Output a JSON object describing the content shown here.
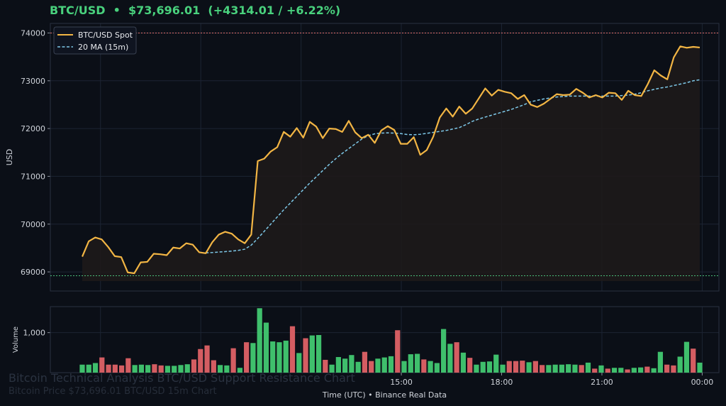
{
  "header": {
    "pair": "BTC/USD",
    "separator": "•",
    "price": "$73,696.01",
    "change": "(+4314.01 / +6.22%)"
  },
  "watermark": {
    "title": "Bitcoin Technical Analysis BTC/USD Support Resistance Chart",
    "subtitle": "Bitcoin Price $73,696.01 BTC/USD 15m Chart"
  },
  "colors": {
    "background": "#0b0f17",
    "grid": "#1c2433",
    "price_line": "#f2b544",
    "ma_line": "#7ec8e8",
    "resistance": "#e06c6c",
    "support": "#4bbf7a",
    "volume_up": "#3fbf6c",
    "volume_down": "#d45d62",
    "text": "#cfd3da"
  },
  "chart_data": [
    {
      "type": "line",
      "ylabel": "USD",
      "ylim": [
        68600,
        74200
      ],
      "xlim": [
        0,
        100
      ],
      "yticks": [
        69000,
        70000,
        71000,
        72000,
        73000,
        74000
      ],
      "resistance": 74000,
      "support": 68920,
      "legend": "top-left",
      "grid": true,
      "series": [
        {
          "name": "BTC/USD Spot",
          "values": [
            69320,
            69640,
            69720,
            69680,
            69520,
            69330,
            69310,
            68990,
            68970,
            69200,
            69210,
            69380,
            69370,
            69350,
            69510,
            69490,
            69600,
            69570,
            69410,
            69390,
            69620,
            69780,
            69840,
            69800,
            69680,
            69600,
            69780,
            71320,
            71370,
            71520,
            71610,
            71930,
            71830,
            72010,
            71810,
            72140,
            72040,
            71800,
            72000,
            71990,
            71930,
            72160,
            71920,
            71800,
            71870,
            71700,
            71960,
            72050,
            71970,
            71680,
            71680,
            71820,
            71450,
            71550,
            71830,
            72230,
            72420,
            72250,
            72460,
            72310,
            72420,
            72630,
            72840,
            72690,
            72810,
            72770,
            72740,
            72620,
            72700,
            72500,
            72450,
            72520,
            72620,
            72720,
            72700,
            72710,
            72830,
            72750,
            72650,
            72700,
            72650,
            72750,
            72740,
            72600,
            72790,
            72700,
            72680,
            72930,
            73220,
            73110,
            73030,
            73490,
            73720,
            73690,
            73710,
            73696.01
          ]
        },
        {
          "name": "20 MA (15m)",
          "start_index": 19,
          "values": [
            69400,
            69405,
            69415,
            69425,
            69435,
            69450,
            69475,
            69560,
            69700,
            69850,
            70000,
            70150,
            70300,
            70440,
            70580,
            70720,
            70860,
            70990,
            71120,
            71250,
            71370,
            71480,
            71580,
            71680,
            71780,
            71850,
            71890,
            71905,
            71910,
            71905,
            71895,
            71875,
            71870,
            71880,
            71900,
            71920,
            71940,
            71960,
            71990,
            72020,
            72080,
            72150,
            72200,
            72240,
            72280,
            72320,
            72360,
            72400,
            72450,
            72500,
            72560,
            72590,
            72620,
            72640,
            72660,
            72670,
            72680,
            72680,
            72680,
            72680,
            72680,
            72680,
            72680,
            72680,
            72690,
            72700,
            72720,
            72750,
            72790,
            72820,
            72850,
            72870,
            72900,
            72930,
            72960,
            73000,
            73020
          ]
        }
      ]
    },
    {
      "type": "bar",
      "ylabel": "Volume",
      "ylim": [
        0,
        1650
      ],
      "yticks": [
        1000
      ],
      "series": [
        {
          "name": "Volume",
          "values": [
            200,
            200,
            240,
            380,
            200,
            200,
            180,
            360,
            190,
            200,
            190,
            210,
            180,
            170,
            170,
            190,
            210,
            330,
            590,
            680,
            310,
            190,
            180,
            610,
            120,
            760,
            740,
            1610,
            1250,
            780,
            760,
            800,
            1160,
            490,
            860,
            930,
            940,
            320,
            200,
            390,
            350,
            440,
            270,
            520,
            290,
            350,
            380,
            410,
            1060,
            290,
            460,
            470,
            330,
            290,
            240,
            1090,
            720,
            760,
            500,
            370,
            200,
            270,
            280,
            450,
            200,
            290,
            290,
            300,
            260,
            290,
            190,
            190,
            200,
            200,
            210,
            200,
            190,
            250,
            100,
            180,
            100,
            120,
            120,
            80,
            120,
            130,
            150,
            110,
            520,
            200,
            180,
            400,
            770,
            600,
            250
          ],
          "up": [
            1,
            1,
            1,
            0,
            0,
            0,
            0,
            0,
            1,
            1,
            1,
            0,
            0,
            1,
            1,
            1,
            1,
            0,
            0,
            0,
            0,
            1,
            1,
            0,
            1,
            0,
            1,
            1,
            1,
            1,
            1,
            1,
            0,
            1,
            0,
            1,
            1,
            0,
            1,
            1,
            1,
            1,
            1,
            0,
            0,
            1,
            1,
            1,
            0,
            1,
            1,
            1,
            0,
            1,
            1,
            1,
            1,
            0,
            1,
            0,
            1,
            1,
            1,
            1,
            1,
            0,
            0,
            0,
            1,
            0,
            0,
            1,
            1,
            1,
            1,
            1,
            0,
            1,
            0,
            1,
            0,
            1,
            1,
            0,
            1,
            1,
            0,
            1,
            1,
            0,
            0,
            1,
            1,
            0,
            1
          ]
        }
      ],
      "xtick_labels": [
        "15:00",
        "18:00",
        "21:00",
        "00:00"
      ],
      "xtick_positions": [
        52.5,
        67.5,
        82.5,
        97.5
      ],
      "xlabel": "Time (UTC)  •  Binance Real Data"
    }
  ]
}
